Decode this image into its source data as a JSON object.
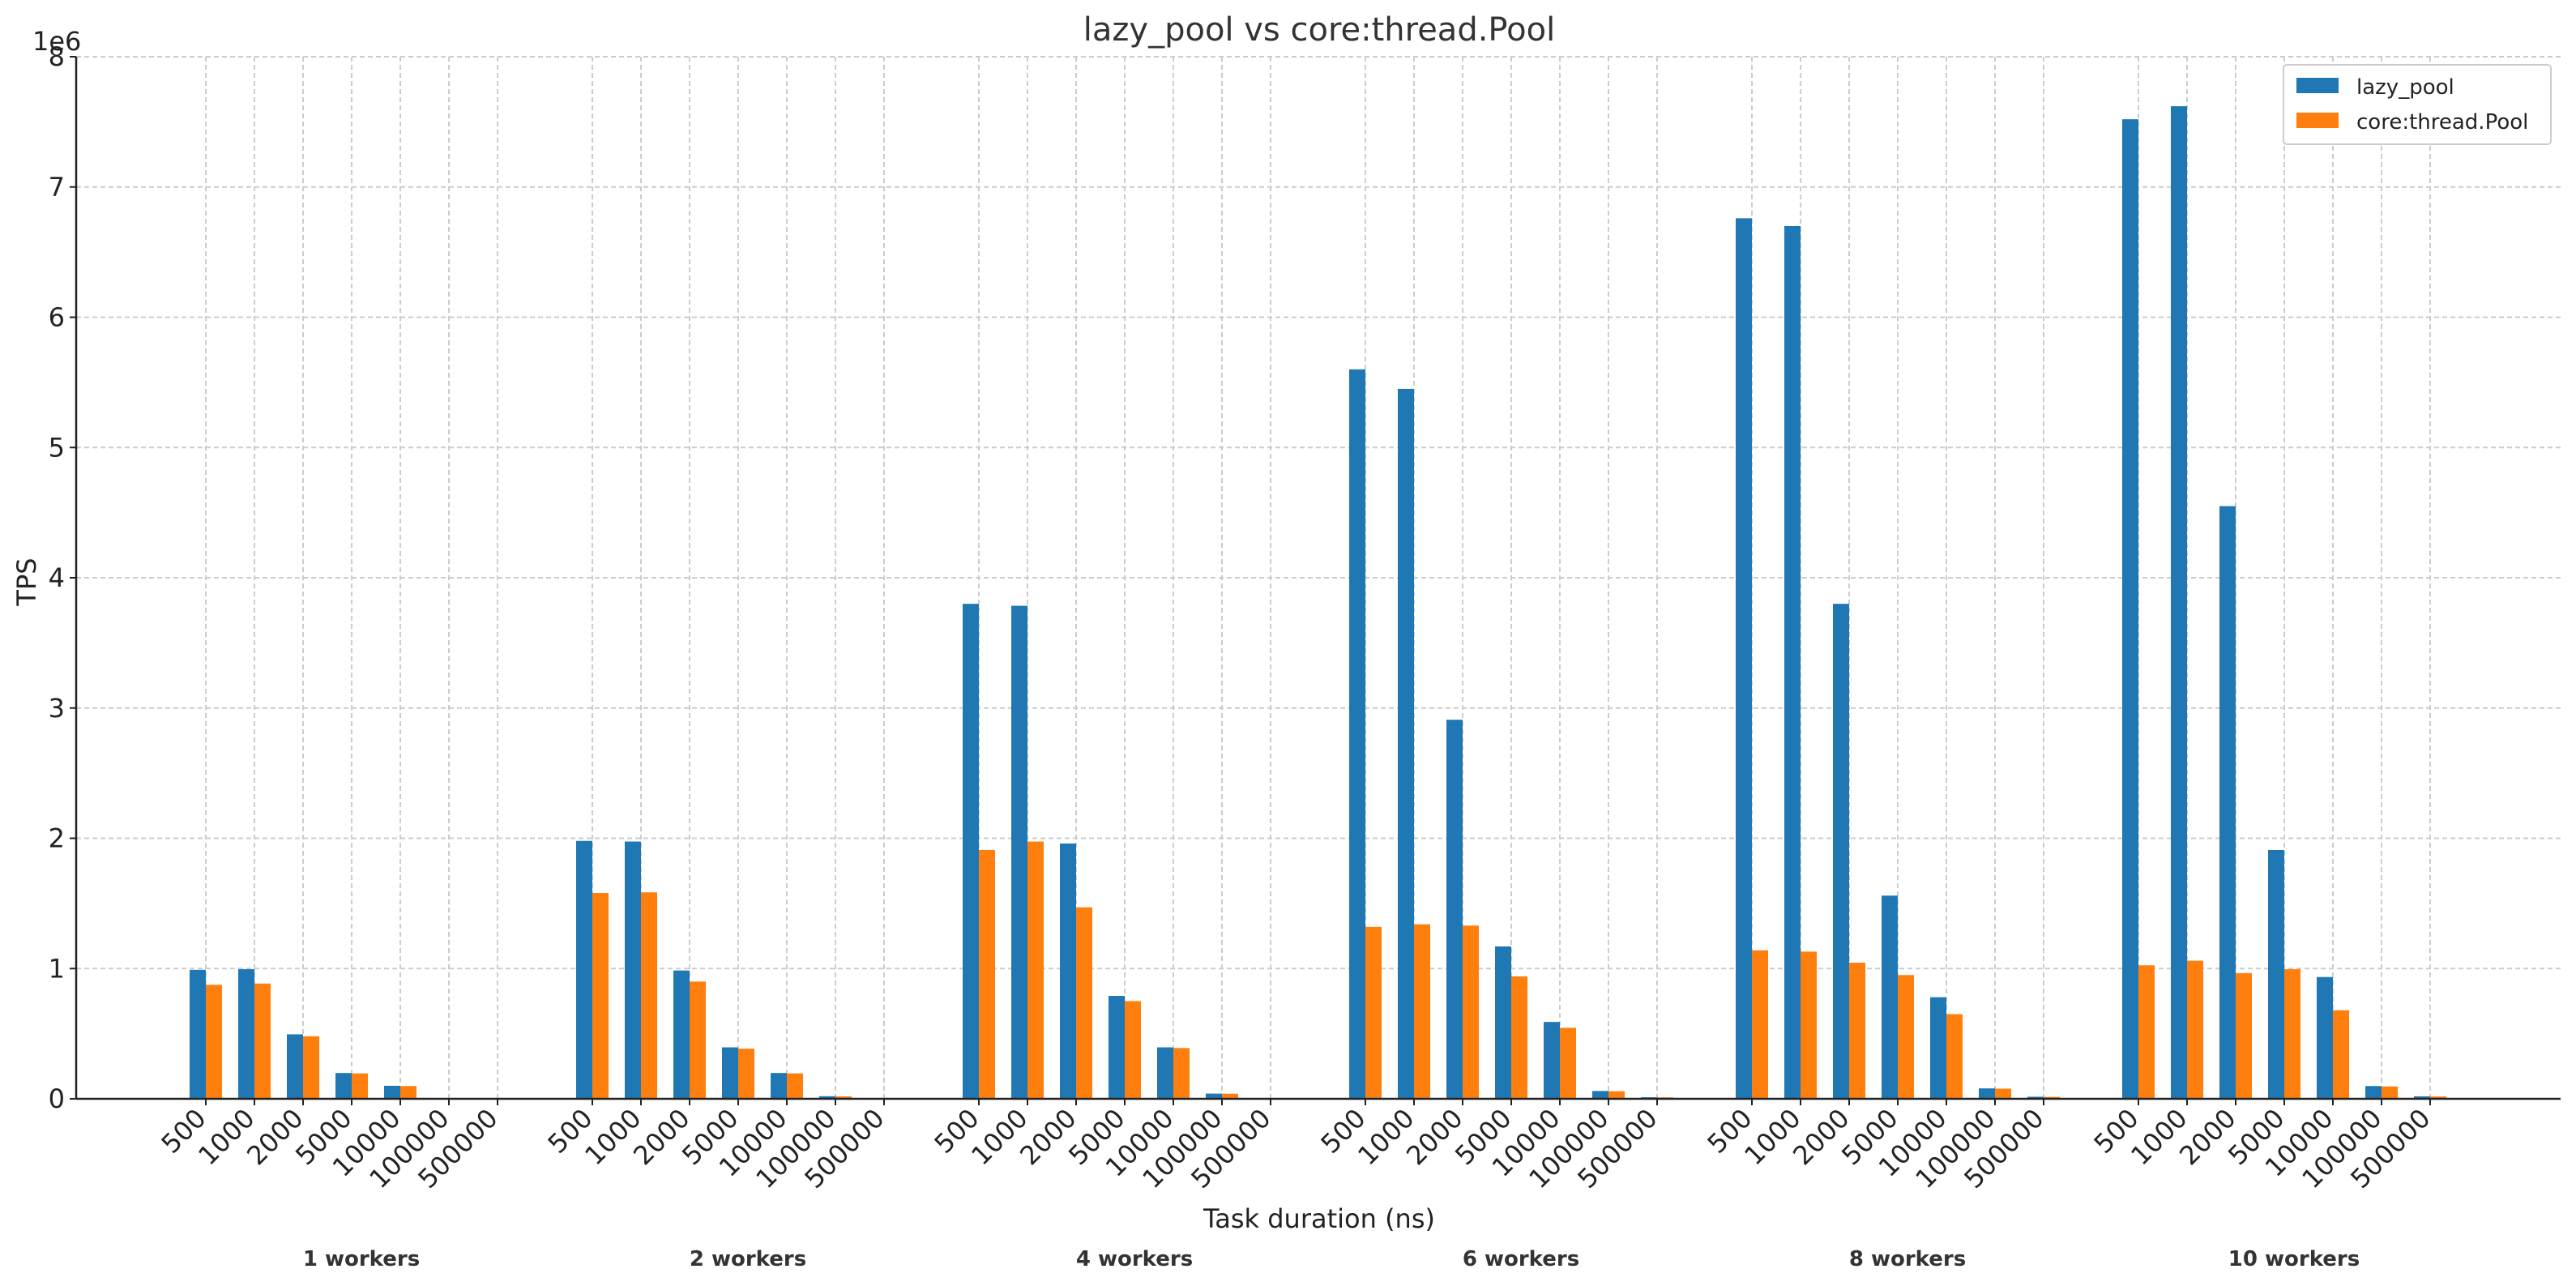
{
  "chart_data": {
    "type": "bar",
    "title": "lazy_pool vs core:thread.Pool",
    "xlabel": "Task duration (ns)",
    "ylabel": "TPS",
    "y_multiplier_label": "1e6",
    "ylim": [
      0,
      8000000
    ],
    "y_ticks": [
      0,
      1000000,
      2000000,
      3000000,
      4000000,
      5000000,
      6000000,
      7000000,
      8000000
    ],
    "y_tick_labels": [
      "0",
      "1",
      "2",
      "3",
      "4",
      "5",
      "6",
      "7",
      "8"
    ],
    "grid": true,
    "legend_position": "top-right",
    "colors": {
      "lazy_pool": "#1f77b4",
      "core_thread_pool": "#ff7f0e"
    },
    "categories": [
      "500",
      "1000",
      "2000",
      "5000",
      "10000",
      "100000",
      "500000"
    ],
    "groups": [
      {
        "label": "1 workers",
        "series": [
          {
            "name": "lazy_pool",
            "values": [
              990000,
              995000,
              495000,
              198000,
              100000,
              0,
              0
            ]
          },
          {
            "name": "core:thread.Pool",
            "values": [
              875000,
              885000,
              480000,
              195000,
              98000,
              0,
              0
            ]
          }
        ]
      },
      {
        "label": "2 workers",
        "series": [
          {
            "name": "lazy_pool",
            "values": [
              1980000,
              1975000,
              985000,
              395000,
              198000,
              20000,
              0
            ]
          },
          {
            "name": "core:thread.Pool",
            "values": [
              1580000,
              1585000,
              900000,
              385000,
              195000,
              19000,
              0
            ]
          }
        ]
      },
      {
        "label": "4 workers",
        "series": [
          {
            "name": "lazy_pool",
            "values": [
              3800000,
              3785000,
              1960000,
              790000,
              395000,
              40000,
              0
            ]
          },
          {
            "name": "core:thread.Pool",
            "values": [
              1910000,
              1975000,
              1470000,
              750000,
              390000,
              39000,
              0
            ]
          }
        ]
      },
      {
        "label": "6 workers",
        "series": [
          {
            "name": "lazy_pool",
            "values": [
              5600000,
              5450000,
              2910000,
              1170000,
              590000,
              60000,
              12000
            ]
          },
          {
            "name": "core:thread.Pool",
            "values": [
              1320000,
              1340000,
              1330000,
              940000,
              545000,
              58000,
              11000
            ]
          }
        ]
      },
      {
        "label": "8 workers",
        "series": [
          {
            "name": "lazy_pool",
            "values": [
              6760000,
              6700000,
              3800000,
              1560000,
              780000,
              80000,
              16000
            ]
          },
          {
            "name": "core:thread.Pool",
            "values": [
              1140000,
              1130000,
              1045000,
              950000,
              650000,
              78000,
              15000
            ]
          }
        ]
      },
      {
        "label": "10 workers",
        "series": [
          {
            "name": "lazy_pool",
            "values": [
              7520000,
              7620000,
              4550000,
              1910000,
              935000,
              98000,
              19000
            ]
          },
          {
            "name": "core:thread.Pool",
            "values": [
              1025000,
              1060000,
              965000,
              995000,
              680000,
              95000,
              18000
            ]
          }
        ]
      }
    ],
    "legend": [
      {
        "name": "lazy_pool",
        "color": "#1f77b4"
      },
      {
        "name": "core:thread.Pool",
        "color": "#ff7f0e"
      }
    ]
  }
}
